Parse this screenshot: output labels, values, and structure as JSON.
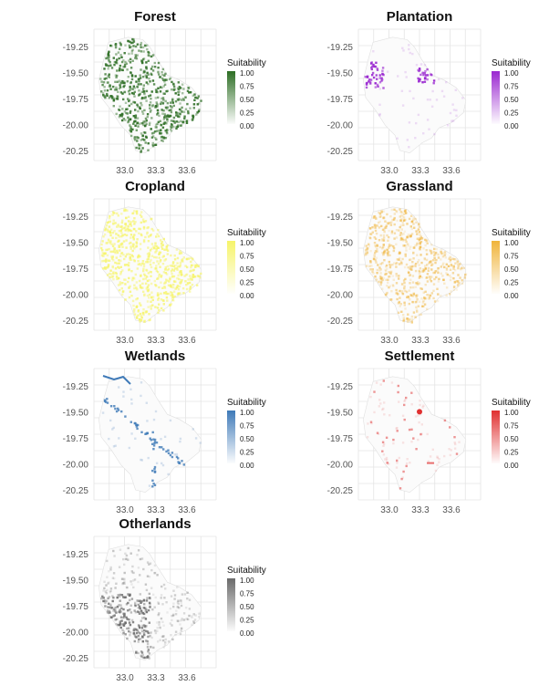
{
  "legend_title": "Suitability",
  "legend_ticks": [
    "1.00",
    "0.75",
    "0.50",
    "0.25",
    "0.00"
  ],
  "y_ticks": [
    "-19.25",
    "-19.50",
    "-19.75",
    "-20.00",
    "-20.25"
  ],
  "x_ticks": [
    "33.0",
    "33.3",
    "33.6"
  ],
  "panels": [
    {
      "title": "Forest",
      "color": "#2d6e24",
      "pattern": "dense"
    },
    {
      "title": "Plantation",
      "color": "#9a28d0",
      "pattern": "sparse-west"
    },
    {
      "title": "Cropland",
      "color": "#f6f46a",
      "pattern": "uniform-pale"
    },
    {
      "title": "Grassland",
      "color": "#f0b43a",
      "pattern": "medium"
    },
    {
      "title": "Wetlands",
      "color": "#3f7ab8",
      "pattern": "rivers"
    },
    {
      "title": "Settlement",
      "color": "#e03030",
      "pattern": "points"
    },
    {
      "title": "Otherlands",
      "color": "#6a6a6a",
      "pattern": "southwest"
    }
  ]
}
